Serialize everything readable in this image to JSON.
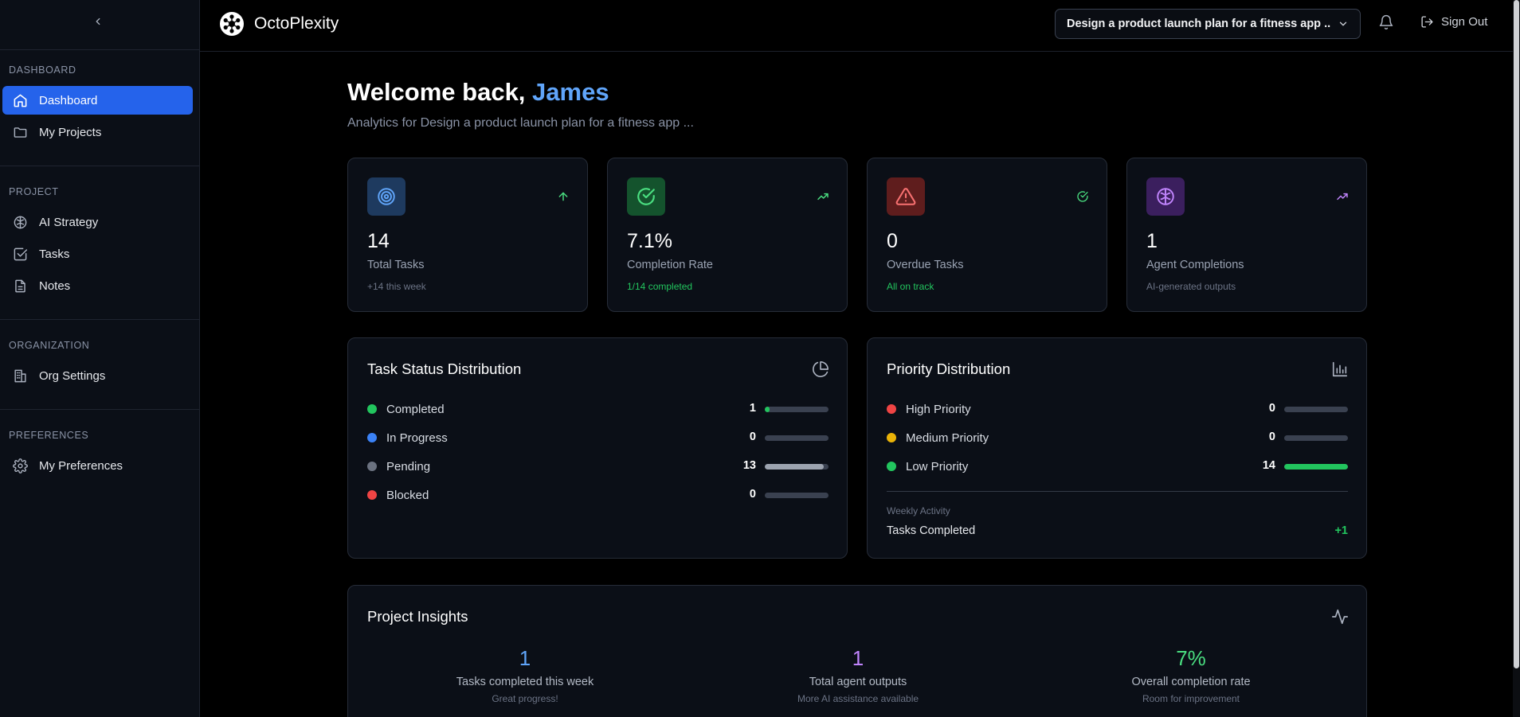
{
  "brand": {
    "name": "OctoPlexity"
  },
  "header": {
    "project_select": "Design a product launch plan for a fitness app ...",
    "sign_out": "Sign Out"
  },
  "sidebar": {
    "sections": [
      {
        "label": "DASHBOARD",
        "items": [
          {
            "label": "Dashboard",
            "icon": "home-icon",
            "active": true
          },
          {
            "label": "My Projects",
            "icon": "folder-icon"
          }
        ]
      },
      {
        "label": "PROJECT",
        "items": [
          {
            "label": "AI Strategy",
            "icon": "brain-icon"
          },
          {
            "label": "Tasks",
            "icon": "check-square-icon"
          },
          {
            "label": "Notes",
            "icon": "file-text-icon"
          }
        ]
      },
      {
        "label": "ORGANIZATION",
        "items": [
          {
            "label": "Org Settings",
            "icon": "building-icon"
          }
        ]
      },
      {
        "label": "PREFERENCES",
        "items": [
          {
            "label": "My Preferences",
            "icon": "gear-icon"
          }
        ]
      }
    ]
  },
  "welcome": {
    "greeting": "Welcome back, ",
    "name": "James",
    "subtitle": "Analytics for Design a product launch plan for a fitness app ..."
  },
  "stats": [
    {
      "value": "14",
      "label": "Total Tasks",
      "sub": "+14 this week",
      "icon": "target-icon",
      "trend_icon": "arrow-up-icon",
      "color": "#60a5fa",
      "bg": "#1e3a5f"
    },
    {
      "value": "7.1%",
      "label": "Completion Rate",
      "sub": "1/14 completed",
      "icon": "check-circle-icon",
      "trend_icon": "trending-up-icon",
      "color": "#4ade80",
      "bg": "#14532d"
    },
    {
      "value": "0",
      "label": "Overdue Tasks",
      "sub": "All on track",
      "icon": "alert-triangle-icon",
      "trend_icon": "check-circle-icon",
      "color": "#f87171",
      "bg": "#5f1d1d"
    },
    {
      "value": "1",
      "label": "Agent Completions",
      "sub": "AI-generated outputs",
      "icon": "brain-icon",
      "trend_icon": "trending-up-icon",
      "color": "#c084fc",
      "bg": "#3b1f5e"
    }
  ],
  "task_status": {
    "title": "Task Status Distribution",
    "total": 14,
    "rows": [
      {
        "label": "Completed",
        "count": "1",
        "value": 1,
        "color": "#22c55e"
      },
      {
        "label": "In Progress",
        "count": "0",
        "value": 0,
        "color": "#3b82f6"
      },
      {
        "label": "Pending",
        "count": "13",
        "value": 13,
        "color": "#6b7280"
      },
      {
        "label": "Blocked",
        "count": "0",
        "value": 0,
        "color": "#ef4444"
      }
    ]
  },
  "priority": {
    "title": "Priority Distribution",
    "total": 14,
    "rows": [
      {
        "label": "High Priority",
        "count": "0",
        "value": 0,
        "color": "#ef4444"
      },
      {
        "label": "Medium Priority",
        "count": "0",
        "value": 0,
        "color": "#eab308"
      },
      {
        "label": "Low Priority",
        "count": "14",
        "value": 14,
        "color": "#22c55e"
      }
    ],
    "weekly_label": "Weekly Activity",
    "weekly_row_label": "Tasks Completed",
    "weekly_row_value": "+1"
  },
  "insights": {
    "title": "Project Insights",
    "items": [
      {
        "value": "1",
        "label": "Tasks completed this week",
        "sub": "Great progress!",
        "color": "#60a5fa"
      },
      {
        "value": "1",
        "label": "Total agent outputs",
        "sub": "More AI assistance available",
        "color": "#c084fc"
      },
      {
        "value": "7%",
        "label": "Overall completion rate",
        "sub": "Room for improvement",
        "color": "#4ade80"
      }
    ]
  }
}
